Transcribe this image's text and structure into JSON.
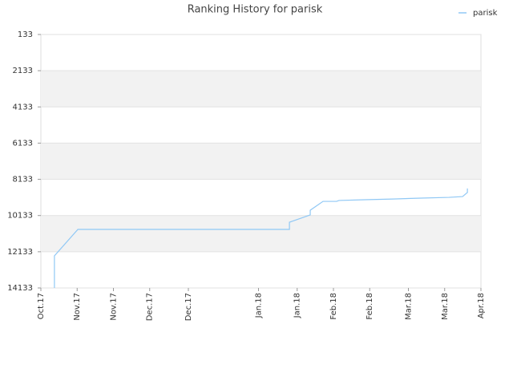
{
  "chart_data": {
    "type": "line",
    "title": "Ranking History for parisk",
    "x": [
      5.6,
      5.6,
      15.3,
      102.8,
      102.8,
      111.4,
      111.4,
      116.7,
      122.3,
      123.3,
      134,
      145.6,
      157.2,
      168.8,
      174.4,
      176.4,
      176.4
    ],
    "series": [
      {
        "name": "parisk",
        "color": "#90c8f5",
        "values": [
          14133,
          12360,
          10900,
          10900,
          10500,
          10100,
          9840,
          9350,
          9350,
          9300,
          9260,
          9220,
          9170,
          9130,
          9085,
          8860,
          8640
        ]
      }
    ],
    "xlim": [
      0,
      182
    ],
    "xticks": [
      {
        "value": 0,
        "label": "Oct.17"
      },
      {
        "value": 15,
        "label": "Nov.17"
      },
      {
        "value": 30,
        "label": "Nov.17"
      },
      {
        "value": 45,
        "label": "Dec.17"
      },
      {
        "value": 61,
        "label": "Dec.17"
      },
      {
        "value": 90,
        "label": "Jan.18"
      },
      {
        "value": 106,
        "label": "Jan.18"
      },
      {
        "value": 121,
        "label": "Feb.18"
      },
      {
        "value": 136,
        "label": "Feb.18"
      },
      {
        "value": 152,
        "label": "Mar.18"
      },
      {
        "value": 167,
        "label": "Mar.18"
      },
      {
        "value": 182,
        "label": "Apr.18"
      }
    ],
    "ylim": [
      133,
      14133
    ],
    "y_inverted": true,
    "yticks": [
      133,
      2133,
      4133,
      6133,
      8133,
      10133,
      12133,
      14133
    ],
    "grid": true,
    "banded": true,
    "legend": "top-right"
  }
}
